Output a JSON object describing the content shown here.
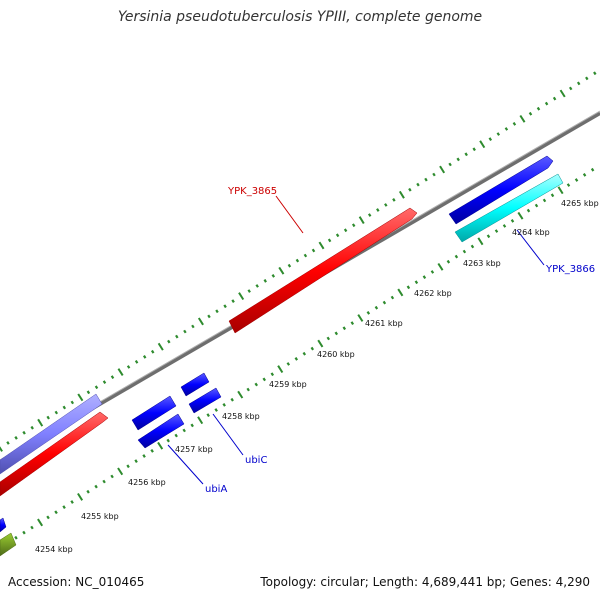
{
  "title": "Yersinia pseudotuberculosis YPIII, complete genome",
  "footer": {
    "accession": "Accession: NC_010465",
    "summary": "Topology: circular; Length: 4,689,441 bp; Genes: 4,290"
  },
  "scale_labels": [
    "4254 kbp",
    "4255 kbp",
    "4256 kbp",
    "4257 kbp",
    "4258 kbp",
    "4259 kbp",
    "4260 kbp",
    "4261 kbp",
    "4262 kbp",
    "4263 kbp",
    "4264 kbp",
    "4265 kbp"
  ],
  "gene_labels": {
    "ypk3865": "YPK_3865",
    "ypk3866": "YPK_3866",
    "ubiA": "ubiA",
    "ubiC": "ubiC"
  },
  "colors": {
    "backbone": "#808080",
    "tick": "#2e8b2e",
    "red_gene": "#ff0000",
    "blue_gene": "#0000ff",
    "cyan_gene": "#00ffff",
    "purple_gene": "#8080ff",
    "olive_gene": "#6b8e23",
    "red_label": "#cc0000",
    "blue_label": "#0000cc"
  }
}
